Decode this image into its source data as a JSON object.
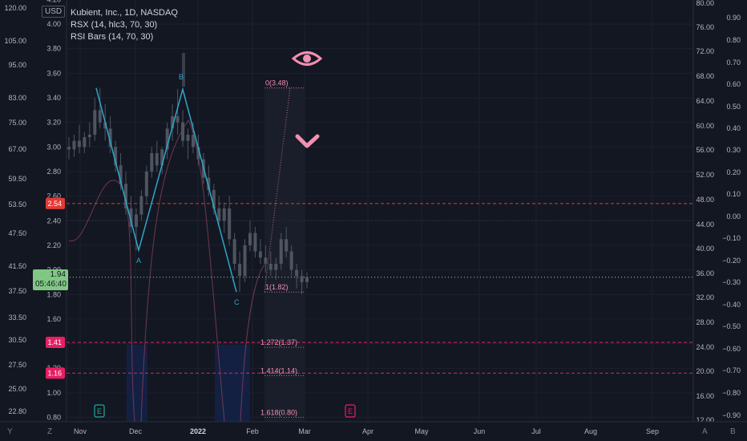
{
  "symbol_label": "Kubient, Inc., 1D, NASDAQ",
  "indicators": [
    "RSX (14, hlc3, 70, 30)",
    "RSI Bars (14, 70, 30)"
  ],
  "currency": "USD",
  "last_price": "1.94",
  "countdown": "05:46:40",
  "colors": {
    "background": "#131722",
    "wave": "#2ea6c8",
    "candle": "#4e5560",
    "magenta": "#e91e63",
    "red_badge": "#e53935",
    "green": "#81c784",
    "fib": "#f48fb1"
  },
  "axes": {
    "left_log_ticks": [
      "120.00",
      "105.00",
      "95.00",
      "83.00",
      "75.00",
      "67.00",
      "59.50",
      "53.50",
      "47.50",
      "41.50",
      "37.50",
      "33.50",
      "30.50",
      "27.50",
      "25.00",
      "22.80"
    ],
    "price_ticks": [
      "4.20",
      "4.00",
      "3.80",
      "3.60",
      "3.40",
      "3.20",
      "3.00",
      "2.80",
      "2.60",
      "2.40",
      "2.20",
      "2.00",
      "1.80",
      "1.60",
      "1.40",
      "1.20",
      "1.00",
      "0.80"
    ],
    "right_a_ticks": [
      "80.00",
      "76.00",
      "72.00",
      "68.00",
      "64.00",
      "60.00",
      "56.00",
      "52.00",
      "48.00",
      "44.00",
      "40.00",
      "36.00",
      "32.00",
      "28.00",
      "24.00",
      "20.00",
      "16.00",
      "12.00"
    ],
    "right_b_ticks": [
      "0.90",
      "0.80",
      "0.70",
      "0.60",
      "0.50",
      "0.40",
      "0.30",
      "0.20",
      "0.10",
      "0.00",
      "−0.10",
      "−0.20",
      "−0.30",
      "−0.40",
      "−0.50",
      "−0.60",
      "−0.70",
      "−0.80",
      "−0.90"
    ],
    "time_ticks": [
      "Nov",
      "Dec",
      "2022",
      "Feb",
      "Mar",
      "Apr",
      "May",
      "Jun",
      "Jul",
      "Aug",
      "Sep"
    ],
    "corner_left": [
      "Y",
      "Z"
    ],
    "corner_right": [
      "A",
      "B"
    ]
  },
  "badges": [
    {
      "text": "2.54",
      "price": 2.54,
      "color": "#e53935"
    },
    {
      "text": "1.41",
      "price": 1.41,
      "color": "#e91e63"
    },
    {
      "text": "1.16",
      "price": 1.16,
      "color": "#e91e63"
    }
  ],
  "chart_data": {
    "type": "candlestick",
    "y_unit": "USD",
    "ylim": [
      0.75,
      4.25
    ],
    "wave_points": [
      {
        "label": "",
        "date": "2021-11-01",
        "price": 3.48
      },
      {
        "label": "A",
        "date": "2021-11-24",
        "price": 2.16
      },
      {
        "label": "B",
        "date": "2021-12-15",
        "price": 3.47
      },
      {
        "label": "C",
        "date": "2022-01-25",
        "price": 1.82
      }
    ],
    "fibonacci": [
      {
        "label": "0(3.48)",
        "price": 3.48
      },
      {
        "label": "1(1.82)",
        "price": 1.82
      },
      {
        "label": "1.272(1.37)",
        "price": 1.37
      },
      {
        "label": "1.414(1.14)",
        "price": 1.14
      },
      {
        "label": "1.618(0.80)",
        "price": 0.8
      }
    ],
    "horizontal_lines": [
      2.54,
      1.41,
      1.16,
      1.94
    ],
    "annotations": [
      "eye-icon",
      "chevron-down-icon"
    ],
    "events": [
      "E",
      "E"
    ],
    "ohlc": [
      [
        3.0,
        3.08,
        2.9,
        2.98
      ],
      [
        2.98,
        3.1,
        2.92,
        3.05
      ],
      [
        3.05,
        3.18,
        2.95,
        3.0
      ],
      [
        3.0,
        3.12,
        2.95,
        3.08
      ],
      [
        3.08,
        3.2,
        3.0,
        3.1
      ],
      [
        3.1,
        3.4,
        3.05,
        3.3
      ],
      [
        3.3,
        3.48,
        3.15,
        3.2
      ],
      [
        3.2,
        3.35,
        3.05,
        3.15
      ],
      [
        3.15,
        3.25,
        2.95,
        3.0
      ],
      [
        3.0,
        3.05,
        2.8,
        2.85
      ],
      [
        2.85,
        2.95,
        2.65,
        2.7
      ],
      [
        2.7,
        2.8,
        2.45,
        2.5
      ],
      [
        2.5,
        2.6,
        2.3,
        2.35
      ],
      [
        2.35,
        2.5,
        2.16,
        2.45
      ],
      [
        2.45,
        2.65,
        2.4,
        2.6
      ],
      [
        2.6,
        2.85,
        2.55,
        2.8
      ],
      [
        2.8,
        3.0,
        2.75,
        2.95
      ],
      [
        2.95,
        3.05,
        2.8,
        2.85
      ],
      [
        2.85,
        3.0,
        2.78,
        2.98
      ],
      [
        2.98,
        3.2,
        2.9,
        3.15
      ],
      [
        3.15,
        3.35,
        3.05,
        3.25
      ],
      [
        3.25,
        3.47,
        3.1,
        3.2
      ],
      [
        3.2,
        3.3,
        3.0,
        3.05
      ],
      [
        3.05,
        3.15,
        2.9,
        3.1
      ],
      [
        3.1,
        3.2,
        2.95,
        3.0
      ],
      [
        3.0,
        3.1,
        2.85,
        2.9
      ],
      [
        2.9,
        2.95,
        2.7,
        2.75
      ],
      [
        2.75,
        2.85,
        2.6,
        2.65
      ],
      [
        2.65,
        2.7,
        2.45,
        2.5
      ],
      [
        2.5,
        2.6,
        2.35,
        2.4
      ],
      [
        2.4,
        2.55,
        2.3,
        2.5
      ],
      [
        2.5,
        2.6,
        2.2,
        2.25
      ],
      [
        2.25,
        2.3,
        2.0,
        2.05
      ],
      [
        2.05,
        2.15,
        1.82,
        1.95
      ],
      [
        1.95,
        2.25,
        1.9,
        2.2
      ],
      [
        2.2,
        2.4,
        2.15,
        2.3
      ],
      [
        2.3,
        2.35,
        2.1,
        2.15
      ],
      [
        2.15,
        2.25,
        2.05,
        2.1
      ],
      [
        2.1,
        2.2,
        1.98,
        2.05
      ],
      [
        2.05,
        2.15,
        1.95,
        2.0
      ],
      [
        2.0,
        2.1,
        1.92,
        2.05
      ],
      [
        2.05,
        2.3,
        2.0,
        2.25
      ],
      [
        2.25,
        2.35,
        2.1,
        2.15
      ],
      [
        2.15,
        2.2,
        1.95,
        2.0
      ],
      [
        2.0,
        2.05,
        1.85,
        1.95
      ],
      [
        1.95,
        2.0,
        1.8,
        1.9
      ],
      [
        1.9,
        1.98,
        1.85,
        1.94
      ]
    ]
  }
}
